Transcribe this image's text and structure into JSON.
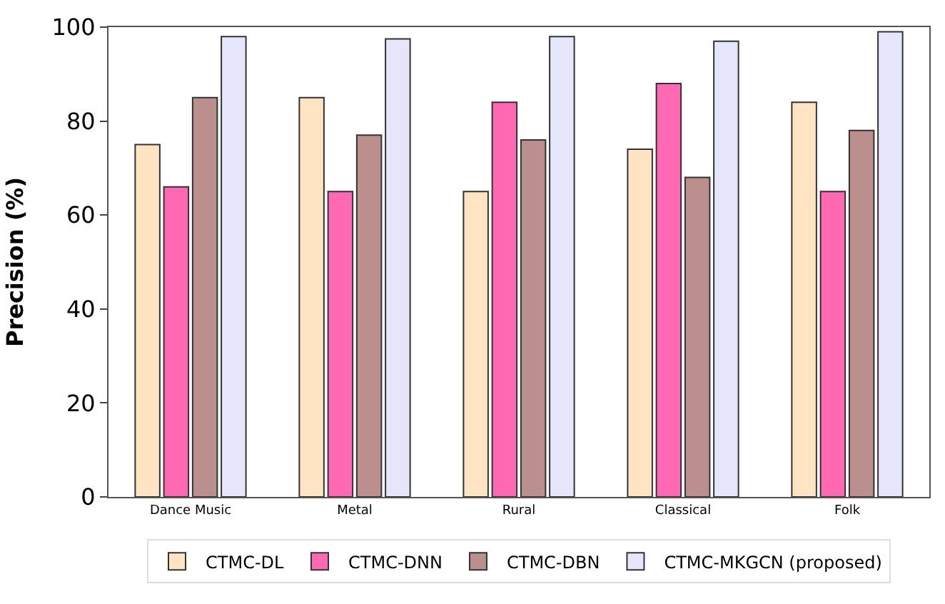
{
  "chart_data": {
    "type": "bar",
    "ylabel": "Precision (%)",
    "categories": [
      "Dance Music",
      "Metal",
      "Rural",
      "Classical",
      "Folk"
    ],
    "series": [
      {
        "name": "CTMC-DL",
        "color": "#ffe4c4",
        "values": [
          75,
          85,
          65,
          74,
          84
        ]
      },
      {
        "name": "CTMC-DNN",
        "color": "#ff69b4",
        "values": [
          66,
          65,
          84,
          88,
          65
        ]
      },
      {
        "name": "CTMC-DBN",
        "color": "#bc8f8f",
        "values": [
          85,
          77,
          76,
          68,
          78
        ]
      },
      {
        "name": "CTMC-MKGCN (proposed)",
        "color": "#e6e6fa",
        "values": [
          98,
          97.5,
          98,
          97,
          99
        ]
      }
    ],
    "ylim": [
      0,
      100
    ],
    "yticks": [
      0,
      20,
      40,
      60,
      80,
      100
    ],
    "legend": "bottom"
  }
}
